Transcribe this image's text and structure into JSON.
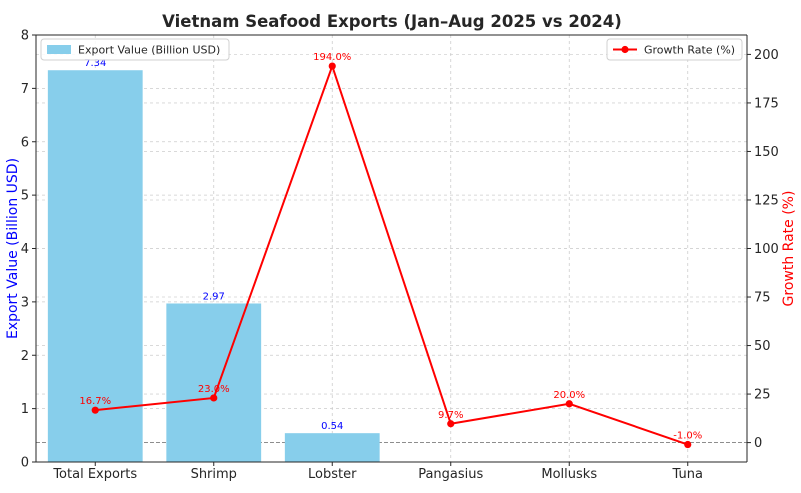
{
  "chart_data": {
    "type": "bar",
    "title": "Vietnam Seafood Exports (Jan–Aug 2025 vs 2024)",
    "categories": [
      "Total Exports",
      "Shrimp",
      "Lobster",
      "Pangasius",
      "Mollusks",
      "Tuna"
    ],
    "series": [
      {
        "name": "Export Value (Billion USD)",
        "type": "bar",
        "axis": "left",
        "values": [
          7.34,
          2.97,
          0.54,
          null,
          null,
          null
        ],
        "labels": [
          "7.34",
          "2.97",
          "0.54",
          "",
          "",
          ""
        ],
        "color": "#87ceeb",
        "label_color": "#0000ff"
      },
      {
        "name": "Growth Rate (%)",
        "type": "line",
        "axis": "right",
        "values": [
          16.7,
          23.0,
          194.0,
          9.7,
          20.0,
          -1.0
        ],
        "labels": [
          "16.7%",
          "23.0%",
          "194.0%",
          "9.7%",
          "20.0%",
          "-1.0%"
        ],
        "color": "#ff0000"
      }
    ],
    "ylabel": "Export Value (Billion USD)",
    "ylabel_right": "Growth Rate (%)",
    "ylabel_color": "#0000ff",
    "ylabel_right_color": "#ff0000",
    "ylim": [
      0,
      8
    ],
    "ylim_right": [
      -10,
      210
    ],
    "yticks": [
      0,
      1,
      2,
      3,
      4,
      5,
      6,
      7,
      8
    ],
    "yticks_right": [
      0,
      25,
      50,
      75,
      100,
      125,
      150,
      175,
      200
    ],
    "reference_line_right": 0,
    "grid": true,
    "legend_left": "top-left",
    "legend_right": "top-right"
  }
}
